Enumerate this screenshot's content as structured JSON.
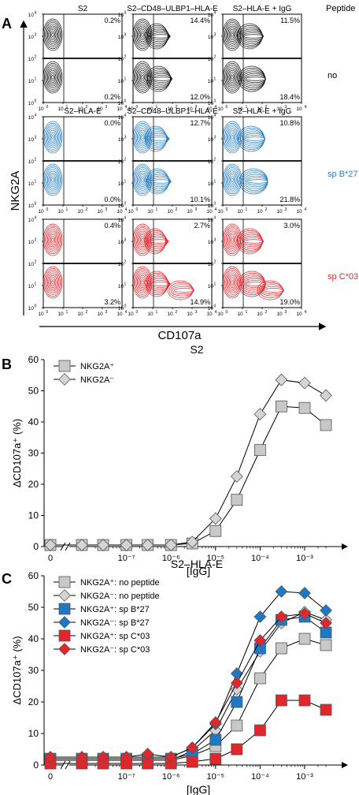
{
  "panel_a": {
    "letter": "A",
    "y_axis_label": "NKG2A",
    "x_axis_label": "CD107a",
    "peptide_header": "Peptide",
    "rows": [
      {
        "color": "#1a1a1a",
        "peptide": "no",
        "peptide_color": "#000000",
        "plots": [
          {
            "title": "S2",
            "upper_pct": "0.2%",
            "lower_pct": "0.2%",
            "cd107_extent": 0.05
          },
          {
            "title": "S2–CD48–ULBP1–HLA-E",
            "upper_pct": "14.4%",
            "lower_pct": "12.0%",
            "cd107_extent": 0.45
          },
          {
            "title": "S2–HLA-E + IgG",
            "upper_pct": "11.5%",
            "lower_pct": "18.4%",
            "cd107_extent": 0.55
          }
        ]
      },
      {
        "color": "#2a7fc1",
        "peptide": "sp B*27",
        "peptide_color": "#2a7fc1",
        "plots": [
          {
            "title": "S2–HLA-E",
            "upper_pct": "0.0%",
            "lower_pct": "0.0%",
            "cd107_extent": 0.05
          },
          {
            "title": "S2–CD48–ULBP1–HLA-E",
            "upper_pct": "12.7%",
            "lower_pct": "10.1%",
            "cd107_extent": 0.42
          },
          {
            "title": "S2–HLA-E + IgG",
            "upper_pct": "10.8%",
            "lower_pct": "21.8%",
            "cd107_extent": 0.6
          }
        ]
      },
      {
        "color": "#e0282e",
        "peptide": "sp C*03",
        "peptide_color": "#e0282e",
        "plots": [
          {
            "title": "",
            "upper_pct": "0.4%",
            "lower_pct": "3.2%",
            "cd107_extent": 0.08
          },
          {
            "title": "",
            "upper_pct": "2.7%",
            "lower_pct": "14.9%",
            "cd107_extent": 0.4
          },
          {
            "title": "",
            "upper_pct": "3.0%",
            "lower_pct": "19.0%",
            "cd107_extent": 0.55
          }
        ]
      }
    ],
    "tick_labels": [
      "10",
      "10",
      "10",
      "10",
      "10"
    ],
    "tick_exponents": [
      "0",
      "1",
      "2",
      "3",
      "4"
    ]
  },
  "chart_data": [
    {
      "type": "line",
      "panel_letter": "B",
      "title": "S2",
      "xlabel": "[IgG]",
      "ylabel": "ΔCD107a⁺ (%)",
      "x_scale": "log with zero break",
      "x": [
        0,
        1e-08,
        3e-08,
        1e-07,
        3e-07,
        1e-06,
        3e-06,
        1e-05,
        3e-05,
        0.0001,
        0.0003,
        0.001,
        0.003
      ],
      "x_tick_labels": [
        "0",
        "10⁻⁷",
        "10⁻⁶",
        "10⁻⁵",
        "10⁻⁴",
        "10⁻³"
      ],
      "ylim": [
        0,
        60
      ],
      "yticks": [
        0,
        10,
        20,
        30,
        40,
        50,
        60
      ],
      "legend_position": "top-left",
      "series": [
        {
          "name": "NKG2A⁺",
          "marker": "square",
          "color": "#c8c8c8",
          "values": [
            0.5,
            0.5,
            0.5,
            0.5,
            0.5,
            0.5,
            1,
            5,
            15,
            31,
            45,
            44.5,
            39
          ]
        },
        {
          "name": "NKG2A⁻",
          "marker": "diamond",
          "color": "#d4d4d4",
          "values": [
            0.5,
            0.5,
            0.5,
            0.5,
            0.5,
            0.5,
            1.5,
            9,
            22.5,
            42.5,
            53.5,
            52.5,
            48.5
          ]
        }
      ]
    },
    {
      "type": "line",
      "panel_letter": "C",
      "title": "S2–HLA-E",
      "xlabel": "[IgG]",
      "ylabel": "ΔCD107a⁺ (%)",
      "x_scale": "log with zero break",
      "x": [
        0,
        1e-08,
        3e-08,
        1e-07,
        3e-07,
        1e-06,
        3e-06,
        1e-05,
        3e-05,
        0.0001,
        0.0003,
        0.001,
        0.003
      ],
      "x_tick_labels": [
        "0",
        "10⁻⁷",
        "10⁻⁶",
        "10⁻⁵",
        "10⁻⁴",
        "10⁻³"
      ],
      "ylim": [
        0,
        60
      ],
      "yticks": [
        0,
        10,
        20,
        30,
        40,
        50,
        60
      ],
      "legend_position": "top-left",
      "series": [
        {
          "name": "NKG2A⁺: no peptide",
          "marker": "square",
          "color": "#c8c8c8",
          "values": [
            1.5,
            1.5,
            1.5,
            1.5,
            1.5,
            1.5,
            3,
            6,
            12.5,
            27.5,
            37,
            40,
            38
          ]
        },
        {
          "name": "NKG2A⁻: no peptide",
          "marker": "diamond",
          "color": "#d4d4d4",
          "values": [
            1.5,
            1.5,
            1.5,
            1.5,
            1.5,
            1.5,
            4.5,
            11,
            24,
            36,
            45,
            48.5,
            46
          ]
        },
        {
          "name": "NKG2A⁺: sp B*27",
          "marker": "square",
          "color": "#1f78c1",
          "values": [
            2,
            2,
            2,
            2,
            2,
            2,
            3.5,
            8,
            20,
            37,
            46,
            47,
            42
          ]
        },
        {
          "name": "NKG2A⁻: sp B*27",
          "marker": "diamond",
          "color": "#1f78c1",
          "values": [
            2.5,
            2.5,
            2.5,
            2.5,
            2.5,
            2.5,
            5.5,
            13,
            29,
            47,
            55,
            54.5,
            49
          ]
        },
        {
          "name": "NKG2A⁺: sp C*03",
          "marker": "square",
          "color": "#e3262b",
          "values": [
            0.5,
            0.5,
            0.5,
            0.5,
            0.5,
            0.5,
            1,
            2,
            5,
            11,
            20.5,
            20.5,
            17.5
          ]
        },
        {
          "name": "NKG2A⁻: sp C*03",
          "marker": "diamond",
          "color": "#e3262b",
          "values": [
            2.5,
            2.5,
            2.5,
            2.5,
            3.5,
            2.5,
            5.5,
            13.5,
            26,
            39.5,
            47,
            48,
            45
          ]
        }
      ]
    }
  ]
}
